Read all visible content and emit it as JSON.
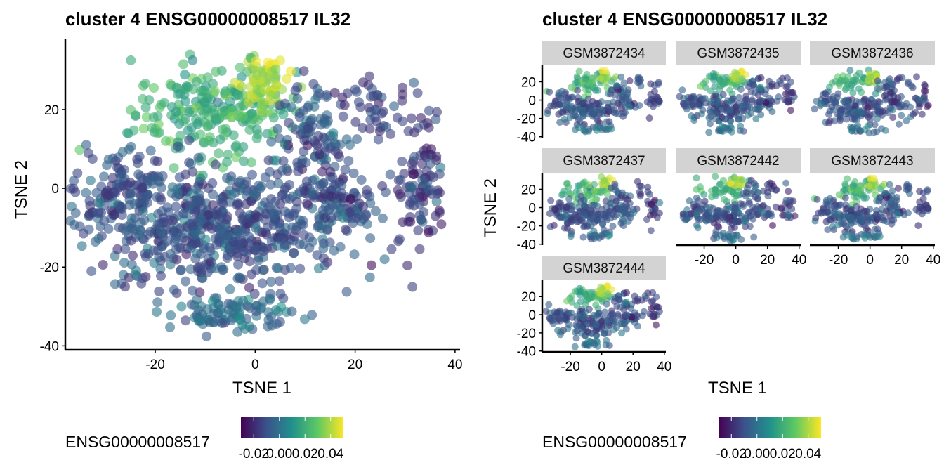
{
  "chart_data": [
    {
      "type": "scatter",
      "title": "cluster 4 ENSG00000008517 IL32",
      "xlabel": "TSNE 1",
      "ylabel": "TSNE 2",
      "xlim": [
        -38,
        41
      ],
      "ylim": [
        -41,
        38
      ],
      "x_ticks": [
        -20,
        0,
        20,
        40
      ],
      "y_ticks": [
        -40,
        -20,
        0,
        20
      ],
      "x_tick_labels": [
        "-20",
        "0",
        "20",
        "40"
      ],
      "y_tick_labels": [
        "-40",
        "-20",
        "0",
        "20"
      ],
      "grid": false,
      "colormap": "viridis",
      "legend": {
        "title": "ENSG00000008517",
        "position": "bottom",
        "ticks": [
          "-0.02",
          "0.00",
          "0.02",
          "0.04"
        ],
        "range": [
          -0.03,
          0.05
        ]
      },
      "clusters": [
        {
          "cx": -8,
          "cy": 19,
          "sx": 8,
          "sy": 6,
          "n": 230,
          "value": 0.02
        },
        {
          "cx": 1,
          "cy": 27,
          "sx": 2.5,
          "sy": 3.5,
          "n": 70,
          "value": 0.04
        },
        {
          "cx": -8,
          "cy": -10,
          "sx": 13,
          "sy": 7.5,
          "n": 600,
          "value": -0.01
        },
        {
          "cx": -27,
          "cy": 0,
          "sx": 4,
          "sy": 5,
          "n": 110,
          "value": -0.01
        },
        {
          "cx": 12,
          "cy": 13,
          "sx": 4,
          "sy": 6,
          "n": 110,
          "value": -0.01
        },
        {
          "cx": 17,
          "cy": -3,
          "sx": 4,
          "sy": 4,
          "n": 90,
          "value": -0.01
        },
        {
          "cx": 33,
          "cy": 2,
          "sx": 2.5,
          "sy": 10,
          "n": 100,
          "value": -0.015
        },
        {
          "cx": -5,
          "cy": -32,
          "sx": 6,
          "sy": 2,
          "n": 90,
          "value": 0.0
        },
        {
          "cx": 24,
          "cy": 20,
          "sx": 4,
          "sy": 3,
          "n": 40,
          "value": -0.015
        }
      ]
    },
    {
      "type": "scatter",
      "title": "cluster 4 ENSG00000008517 IL32",
      "xlabel": "TSNE 1",
      "ylabel": "TSNE 2",
      "facets": [
        "GSM3872434",
        "GSM3872435",
        "GSM3872436",
        "GSM3872437",
        "GSM3872442",
        "GSM3872443",
        "GSM3872444"
      ],
      "xlim": [
        -38,
        41
      ],
      "ylim": [
        -41,
        38
      ],
      "x_ticks": [
        -20,
        0,
        20,
        40
      ],
      "y_ticks": [
        -40,
        -20,
        0,
        20
      ],
      "x_tick_labels": [
        "-20",
        "0",
        "20",
        "40"
      ],
      "y_tick_labels": [
        "-40",
        "-20",
        "0",
        "20"
      ],
      "grid": false,
      "colormap": "viridis",
      "legend": {
        "title": "ENSG00000008517",
        "position": "bottom",
        "ticks": [
          "-0.02",
          "0.00",
          "0.02",
          "0.04"
        ],
        "range": [
          -0.03,
          0.05
        ]
      }
    }
  ]
}
